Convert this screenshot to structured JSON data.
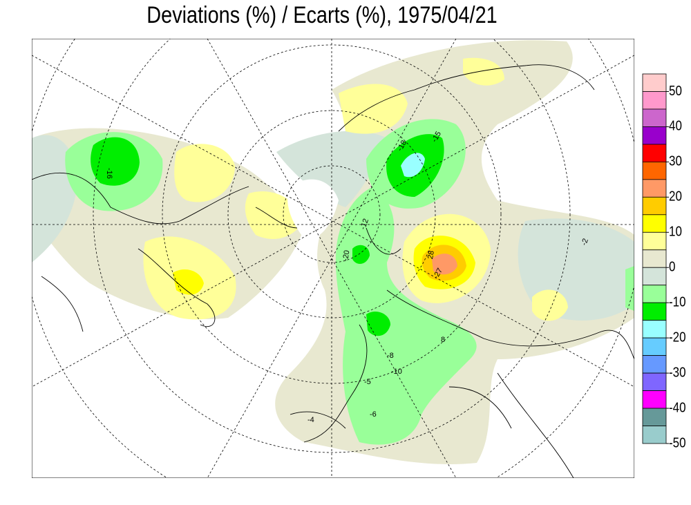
{
  "title": "Deviations (%) / Ecarts (%), 1975/04/21",
  "colorbar": {
    "levels": [
      55,
      50,
      45,
      40,
      35,
      30,
      25,
      20,
      15,
      10,
      5,
      0,
      -5,
      -10,
      -15,
      -20,
      -25,
      -30,
      -35,
      -40,
      -45,
      -50
    ],
    "colors": [
      "#ffcccc",
      "#ff99cc",
      "#cc66cc",
      "#9900cc",
      "#ff0000",
      "#ff6600",
      "#ff9966",
      "#ffcc00",
      "#ffff00",
      "#ffff99",
      "#e8e8d0",
      "#d4e4da",
      "#99ff99",
      "#00ee00",
      "#99ffff",
      "#66ccff",
      "#6699ff",
      "#7f66ff",
      "#ff00ff",
      "#669999",
      "#99cccc"
    ],
    "ticks": [
      50,
      40,
      30,
      20,
      10,
      0,
      -10,
      -20,
      -30,
      -40,
      -50
    ]
  },
  "map": {
    "contour_labels": [
      "-16",
      "-18",
      "-15",
      "28",
      "-27",
      "-20",
      "-12",
      "-8",
      "-6",
      "-5",
      "-4",
      "-2",
      "-10",
      "8"
    ]
  }
}
